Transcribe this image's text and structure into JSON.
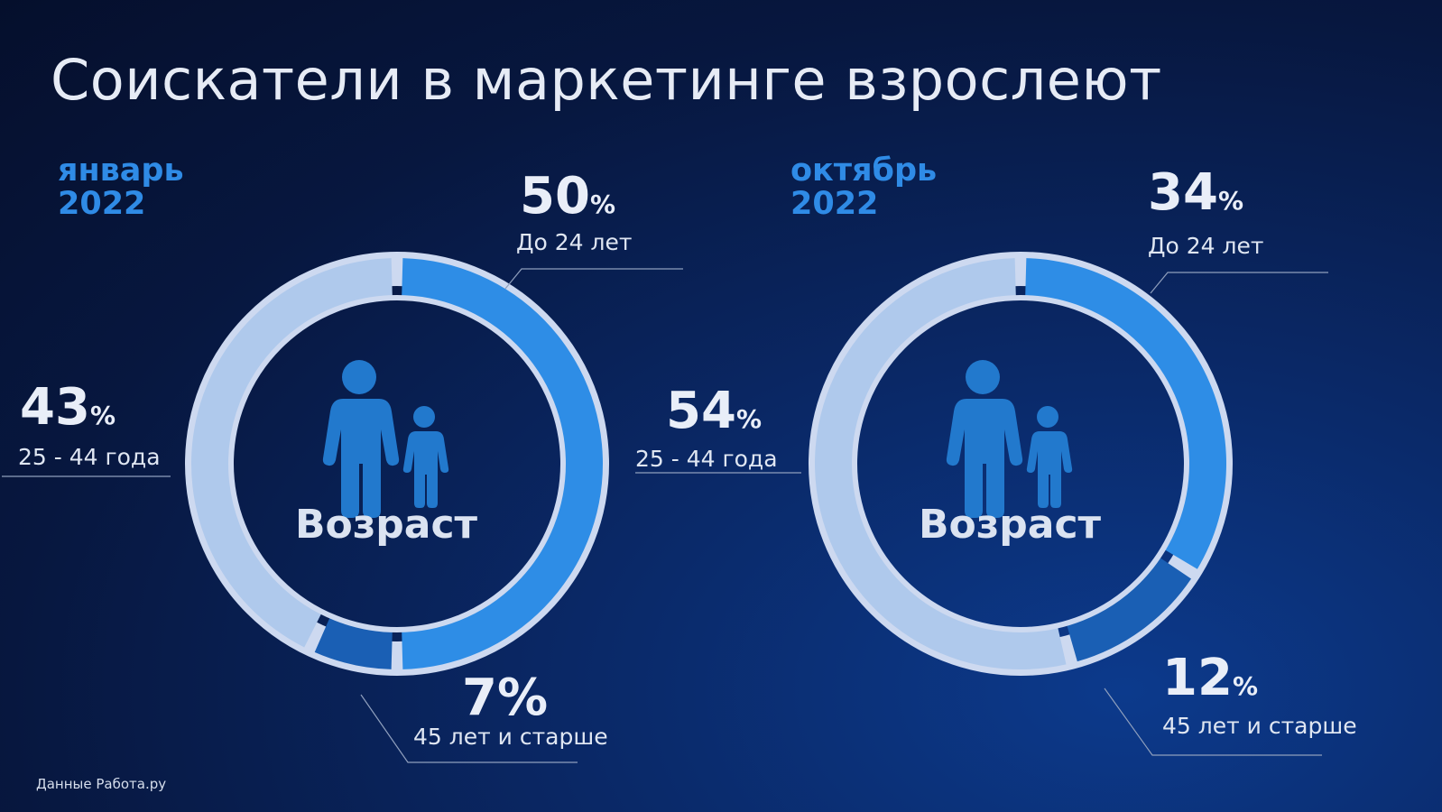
{
  "title": "Соискатели в маркетинге взрослеют",
  "footer": "Данные Работа.ру",
  "colors": {
    "under24": "#2e8de6",
    "age25_44": "#afc9ec",
    "over45": "#1a5fb4",
    "ring_outline": "#cdd9f0",
    "icon": "#2279cd",
    "accent": "#2f8be6"
  },
  "center_label": "Возраст",
  "center_icon": "parent-child-icon",
  "chart_data": [
    {
      "type": "pie",
      "period": {
        "month": "январь",
        "year": "2022"
      },
      "series": [
        {
          "name": "До 24 лет",
          "value": 50,
          "display": "50"
        },
        {
          "name": "45 лет и старше",
          "value": 7,
          "display": "7"
        },
        {
          "name": "25 - 44 года",
          "value": 43,
          "display": "43"
        }
      ]
    },
    {
      "type": "pie",
      "period": {
        "month": "октябрь",
        "year": "2022"
      },
      "series": [
        {
          "name": "До 24 лет",
          "value": 34,
          "display": "34"
        },
        {
          "name": "45 лет и старше",
          "value": 12,
          "display": "12"
        },
        {
          "name": "25 - 44 года",
          "value": 54,
          "display": "54"
        }
      ]
    }
  ]
}
